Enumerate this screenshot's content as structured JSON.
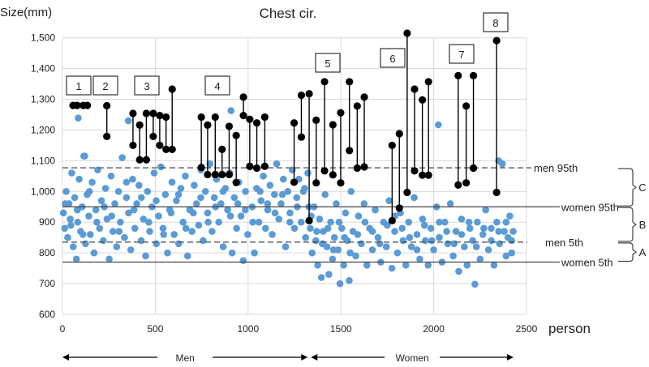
{
  "chart_data": {
    "type": "scatter",
    "title": "Chest cir.",
    "ylabel": "Size(mm)",
    "xlabel": "person",
    "xlim": [
      0,
      2500
    ],
    "ylim": [
      600,
      1500
    ],
    "xticks": [
      "0",
      "500",
      "1000",
      "1500",
      "2000",
      "2500"
    ],
    "yticks": [
      "600",
      "700",
      "800",
      "900",
      "1,000",
      "1,100",
      "1,200",
      "1,300",
      "1,400",
      "1,500"
    ],
    "grid": true,
    "colors": {
      "points": "#5B9BD5",
      "highlight": "#000000",
      "grid": "#D9D9D9"
    },
    "reference_lines": [
      {
        "label": "men 95th",
        "value": 1077,
        "style": "dashed"
      },
      {
        "label": "women 95th",
        "value": 950,
        "style": "solid"
      },
      {
        "label": "men 5th",
        "value": 835,
        "style": "dashed"
      },
      {
        "label": "women 5th",
        "value": 770,
        "style": "solid"
      }
    ],
    "brackets": [
      {
        "label": "C",
        "from": 950,
        "to": 1077
      },
      {
        "label": "B",
        "from": 835,
        "to": 950
      },
      {
        "label": "A",
        "from": 770,
        "to": 835
      }
    ],
    "groups": [
      {
        "label": "Men",
        "from": 0,
        "to": 1330
      },
      {
        "label": "Women",
        "from": 1330,
        "to": 2430
      }
    ],
    "annotations": [
      "1",
      "2",
      "3",
      "4",
      "5",
      "6",
      "7",
      "8"
    ],
    "highlighted_pairs": [
      [
        57,
        1280,
        1280
      ],
      [
        112,
        1280,
        1280
      ],
      [
        239,
        1279,
        1179
      ],
      [
        380,
        1254,
        1150
      ],
      [
        416,
        1216,
        1103
      ],
      [
        452,
        1254,
        1103
      ],
      [
        489,
        1254,
        1179
      ],
      [
        524,
        1247,
        1150
      ],
      [
        558,
        1242,
        1137
      ],
      [
        591,
        1333,
        1137
      ],
      [
        748,
        1242,
        1078
      ],
      [
        782,
        1216,
        1055
      ],
      [
        823,
        1242,
        1055
      ],
      [
        860,
        1137,
        1055
      ],
      [
        898,
        1212,
        1055
      ],
      [
        936,
        1182,
        1029
      ],
      [
        975,
        1307,
        1247
      ],
      [
        1009,
        1235,
        1082
      ],
      [
        1047,
        1223,
        1076
      ],
      [
        1090,
        1242,
        1082
      ],
      [
        1248,
        1223,
        1030
      ],
      [
        1287,
        1313,
        1177
      ],
      [
        1329,
        1318,
        905
      ],
      [
        1367,
        1232,
        1028
      ],
      [
        1412,
        1357,
        1067
      ],
      [
        1457,
        1217,
        1054
      ],
      [
        1499,
        1256,
        1028
      ],
      [
        1546,
        1357,
        1133
      ],
      [
        1588,
        1278,
        1076
      ],
      [
        1626,
        1307,
        1080
      ],
      [
        1776,
        1150,
        905
      ],
      [
        1815,
        1188,
        946
      ],
      [
        1857,
        1515,
        997
      ],
      [
        1897,
        1333,
        1067
      ],
      [
        1939,
        1298,
        1053
      ],
      [
        1972,
        1357,
        1053
      ],
      [
        2132,
        1377,
        1021
      ],
      [
        2175,
        1278,
        1028
      ],
      [
        2214,
        1377,
        1076
      ],
      [
        2339,
        1491,
        997
      ]
    ],
    "points": [
      [
        5,
        930
      ],
      [
        12,
        880
      ],
      [
        20,
        1000
      ],
      [
        28,
        850
      ],
      [
        35,
        960
      ],
      [
        42,
        910
      ],
      [
        50,
        1060
      ],
      [
        58,
        820
      ],
      [
        66,
        980
      ],
      [
        75,
        780
      ],
      [
        82,
        900
      ],
      [
        90,
        1040
      ],
      [
        98,
        870
      ],
      [
        106,
        950
      ],
      [
        115,
        1115
      ],
      [
        124,
        830
      ],
      [
        133,
        990
      ],
      [
        142,
        920
      ],
      [
        150,
        860
      ],
      [
        160,
        1030
      ],
      [
        170,
        800
      ],
      [
        180,
        940
      ],
      [
        190,
        1070
      ],
      [
        200,
        880
      ],
      [
        210,
        970
      ],
      [
        220,
        840
      ],
      [
        232,
        1010
      ],
      [
        240,
        910
      ],
      [
        252,
        780
      ],
      [
        262,
        1050
      ],
      [
        272,
        870
      ],
      [
        282,
        960
      ],
      [
        292,
        820
      ],
      [
        302,
        1000
      ],
      [
        312,
        900
      ],
      [
        322,
        1110
      ],
      [
        334,
        850
      ],
      [
        345,
        980
      ],
      [
        356,
        930
      ],
      [
        368,
        810
      ],
      [
        378,
        1040
      ],
      [
        390,
        880
      ],
      [
        400,
        960
      ],
      [
        412,
        1020
      ],
      [
        424,
        840
      ],
      [
        436,
        910
      ],
      [
        448,
        790
      ],
      [
        458,
        1000
      ],
      [
        470,
        870
      ],
      [
        482,
        950
      ],
      [
        494,
        1060
      ],
      [
        506,
        830
      ],
      [
        518,
        920
      ],
      [
        530,
        1080
      ],
      [
        542,
        880
      ],
      [
        554,
        990
      ],
      [
        566,
        800
      ],
      [
        578,
        940
      ],
      [
        590,
        1030
      ],
      [
        602,
        860
      ],
      [
        614,
        970
      ],
      [
        626,
        830
      ],
      [
        638,
        1010
      ],
      [
        650,
        900
      ],
      [
        662,
        1050
      ],
      [
        674,
        790
      ],
      [
        686,
        940
      ],
      [
        698,
        870
      ],
      [
        710,
        1020
      ],
      [
        722,
        960
      ],
      [
        734,
        890
      ],
      [
        746,
        1070
      ],
      [
        758,
        840
      ],
      [
        770,
        1000
      ],
      [
        782,
        930
      ],
      [
        794,
        1090
      ],
      [
        806,
        870
      ],
      [
        818,
        980
      ],
      [
        830,
        1040
      ],
      [
        842,
        900
      ],
      [
        854,
        960
      ],
      [
        866,
        820
      ],
      [
        878,
        1010
      ],
      [
        890,
        940
      ],
      [
        902,
        1060
      ],
      [
        914,
        800
      ],
      [
        926,
        980
      ],
      [
        938,
        880
      ],
      [
        950,
        1030
      ],
      [
        962,
        920
      ],
      [
        974,
        775
      ],
      [
        986,
        1000
      ],
      [
        998,
        860
      ],
      [
        1010,
        1080
      ],
      [
        1022,
        950
      ],
      [
        1034,
        800
      ],
      [
        1046,
        1010
      ],
      [
        1058,
        900
      ],
      [
        1070,
        970
      ],
      [
        1082,
        1050
      ],
      [
        1094,
        880
      ],
      [
        1106,
        940
      ],
      [
        1118,
        1020
      ],
      [
        1130,
        860
      ],
      [
        1142,
        990
      ],
      [
        1154,
        1090
      ],
      [
        1166,
        910
      ],
      [
        1178,
        960
      ],
      [
        1190,
        1040
      ],
      [
        1202,
        820
      ],
      [
        1214,
        1000
      ],
      [
        1226,
        930
      ],
      [
        1238,
        1070
      ],
      [
        1250,
        880
      ],
      [
        1262,
        980
      ],
      [
        1274,
        1040
      ],
      [
        1286,
        900
      ],
      [
        1298,
        1000
      ],
      [
        1310,
        850
      ],
      [
        1322,
        1060
      ],
      [
        1328,
        950
      ],
      [
        15,
        960
      ],
      [
        45,
        890
      ],
      [
        80,
        940
      ],
      [
        110,
        860
      ],
      [
        145,
        1000
      ],
      [
        185,
        900
      ],
      [
        225,
        950
      ],
      [
        265,
        920
      ],
      [
        305,
        870
      ],
      [
        345,
        1030
      ],
      [
        385,
        940
      ],
      [
        425,
        980
      ],
      [
        465,
        900
      ],
      [
        505,
        970
      ],
      [
        545,
        860
      ],
      [
        585,
        930
      ],
      [
        625,
        990
      ],
      [
        665,
        880
      ],
      [
        705,
        930
      ],
      [
        745,
        980
      ],
      [
        785,
        900
      ],
      [
        825,
        950
      ],
      [
        865,
        1000
      ],
      [
        905,
        920
      ],
      [
        945,
        960
      ],
      [
        985,
        940
      ],
      [
        1025,
        900
      ],
      [
        1065,
        1000
      ],
      [
        1105,
        960
      ],
      [
        1145,
        930
      ],
      [
        1185,
        990
      ],
      [
        1225,
        900
      ],
      [
        1265,
        950
      ],
      [
        1305,
        1010
      ],
      [
        85,
        1239
      ],
      [
        355,
        1230
      ],
      [
        908,
        1263
      ],
      [
        120,
        1115
      ],
      [
        1335,
        880
      ],
      [
        1345,
        800
      ],
      [
        1355,
        950
      ],
      [
        1365,
        840
      ],
      [
        1375,
        760
      ],
      [
        1385,
        910
      ],
      [
        1395,
        720
      ],
      [
        1405,
        870
      ],
      [
        1415,
        990
      ],
      [
        1425,
        820
      ],
      [
        1435,
        730
      ],
      [
        1445,
        900
      ],
      [
        1455,
        780
      ],
      [
        1465,
        850
      ],
      [
        1475,
        960
      ],
      [
        1485,
        810
      ],
      [
        1495,
        700
      ],
      [
        1505,
        880
      ],
      [
        1515,
        760
      ],
      [
        1525,
        930
      ],
      [
        1535,
        840
      ],
      [
        1545,
        710
      ],
      [
        1555,
        1000
      ],
      [
        1565,
        870
      ],
      [
        1580,
        790
      ],
      [
        1595,
        920
      ],
      [
        1610,
        830
      ],
      [
        1625,
        960
      ],
      [
        1640,
        760
      ],
      [
        1655,
        880
      ],
      [
        1670,
        810
      ],
      [
        1685,
        940
      ],
      [
        1700,
        850
      ],
      [
        1715,
        770
      ],
      [
        1730,
        900
      ],
      [
        1745,
        820
      ],
      [
        1760,
        970
      ],
      [
        1775,
        750
      ],
      [
        1790,
        870
      ],
      [
        1805,
        800
      ],
      [
        1820,
        930
      ],
      [
        1835,
        840
      ],
      [
        1850,
        760
      ],
      [
        1865,
        900
      ],
      [
        1880,
        820
      ],
      [
        1895,
        980
      ],
      [
        1910,
        860
      ],
      [
        1925,
        780
      ],
      [
        1940,
        910
      ],
      [
        1955,
        840
      ],
      [
        1970,
        760
      ],
      [
        1985,
        880
      ],
      [
        2000,
        810
      ],
      [
        2015,
        950
      ],
      [
        2030,
        850
      ],
      [
        2045,
        770
      ],
      [
        2060,
        900
      ],
      [
        2075,
        830
      ],
      [
        2090,
        960
      ],
      [
        2105,
        790
      ],
      [
        2120,
        870
      ],
      [
        2135,
        740
      ],
      [
        2150,
        910
      ],
      [
        2165,
        820
      ],
      [
        2180,
        760
      ],
      [
        2195,
        880
      ],
      [
        2210,
        840
      ],
      [
        2222,
        698
      ],
      [
        2235,
        900
      ],
      [
        2250,
        780
      ],
      [
        2265,
        860
      ],
      [
        2280,
        940
      ],
      [
        2295,
        810
      ],
      [
        2310,
        880
      ],
      [
        2325,
        760
      ],
      [
        2340,
        900
      ],
      [
        2355,
        830
      ],
      [
        2370,
        1090
      ],
      [
        2380,
        870
      ],
      [
        2390,
        790
      ],
      [
        2400,
        850
      ],
      [
        2410,
        920
      ],
      [
        2420,
        800
      ],
      [
        2428,
        870
      ],
      [
        1340,
        920
      ],
      [
        1370,
        870
      ],
      [
        1400,
        830
      ],
      [
        1430,
        880
      ],
      [
        1460,
        810
      ],
      [
        1490,
        900
      ],
      [
        1520,
        850
      ],
      [
        1550,
        800
      ],
      [
        1590,
        860
      ],
      [
        1630,
        900
      ],
      [
        1670,
        870
      ],
      [
        1710,
        830
      ],
      [
        1750,
        890
      ],
      [
        1790,
        920
      ],
      [
        1830,
        880
      ],
      [
        1870,
        850
      ],
      [
        1910,
        810
      ],
      [
        1950,
        890
      ],
      [
        1990,
        840
      ],
      [
        2030,
        900
      ],
      [
        2070,
        870
      ],
      [
        2110,
        830
      ],
      [
        2150,
        860
      ],
      [
        2190,
        900
      ],
      [
        2230,
        820
      ],
      [
        2270,
        880
      ],
      [
        2310,
        840
      ],
      [
        2350,
        870
      ],
      [
        2390,
        900
      ],
      [
        2420,
        840
      ],
      [
        2025,
        1217
      ],
      [
        2350,
        1100
      ]
    ]
  }
}
